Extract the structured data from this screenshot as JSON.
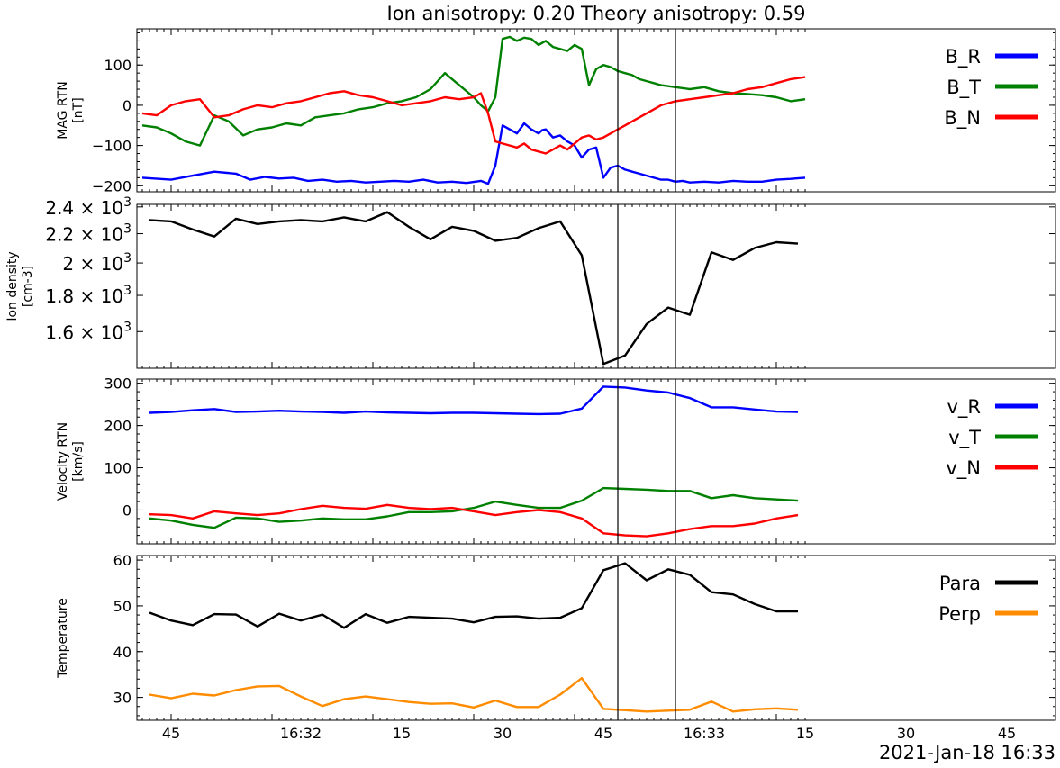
{
  "title": "Ion anisotropy: 0.20 Theory anisotropy: 0.59",
  "date_label": "2021-Jan-18 16:33",
  "chart_data": [
    {
      "type": "line",
      "ylabel": "MAG RTN\n[nT]",
      "ylim": [
        -215,
        190
      ],
      "yticks": [
        {
          "v": 100,
          "l": "100"
        },
        {
          "v": 0,
          "l": "0"
        },
        {
          "v": -100,
          "l": "−100"
        },
        {
          "v": -200,
          "l": "−200"
        }
      ],
      "x_range_s": [
        -50,
        42
      ],
      "legend_position": "top-right",
      "series": [
        {
          "name": "B_R",
          "color": "#0000ff",
          "x": [
            -50,
            -46,
            -43,
            -40,
            -37,
            -35,
            -33,
            -31,
            -29,
            -27,
            -25,
            -23,
            -21,
            -19,
            -17,
            -15,
            -13,
            -11,
            -9,
            -7,
            -5,
            -3,
            -2,
            -1,
            0,
            1,
            2,
            3,
            4,
            5,
            5.5,
            6,
            7,
            8,
            9,
            10,
            11,
            12,
            13,
            14,
            15,
            16,
            17,
            18,
            19,
            20,
            21,
            22,
            23,
            24,
            25,
            26,
            28,
            30,
            32,
            34,
            36,
            38,
            40,
            42
          ],
          "y": [
            -180,
            -185,
            -175,
            -165,
            -170,
            -185,
            -178,
            -182,
            -180,
            -188,
            -185,
            -190,
            -188,
            -192,
            -190,
            -188,
            -190,
            -185,
            -192,
            -190,
            -193,
            -188,
            -195,
            -150,
            -50,
            -60,
            -70,
            -45,
            -60,
            -70,
            -62,
            -60,
            -80,
            -75,
            -90,
            -100,
            -130,
            -110,
            -105,
            -180,
            -155,
            -150,
            -160,
            -165,
            -170,
            -175,
            -180,
            -185,
            -185,
            -190,
            -188,
            -192,
            -190,
            -192,
            -188,
            -190,
            -190,
            -185,
            -183,
            -180
          ]
        },
        {
          "name": "B_T",
          "color": "#008000",
          "x": [
            -50,
            -48,
            -46,
            -44,
            -42,
            -40,
            -38,
            -36,
            -34,
            -32,
            -30,
            -28,
            -26,
            -24,
            -22,
            -20,
            -18,
            -16,
            -14,
            -12,
            -10,
            -8,
            -6,
            -4,
            -3,
            -2,
            -1,
            0,
            1,
            2,
            3,
            4,
            5,
            6,
            7,
            8,
            9,
            10,
            11,
            12,
            13,
            14,
            15,
            16,
            17,
            18,
            19,
            20,
            21,
            22,
            24,
            26,
            28,
            30,
            32,
            34,
            36,
            38,
            40,
            42
          ],
          "y": [
            -50,
            -55,
            -70,
            -90,
            -100,
            -25,
            -40,
            -75,
            -60,
            -55,
            -45,
            -50,
            -30,
            -25,
            -20,
            -10,
            -5,
            5,
            10,
            20,
            40,
            80,
            50,
            20,
            0,
            -15,
            20,
            165,
            170,
            160,
            168,
            165,
            150,
            160,
            145,
            140,
            135,
            150,
            140,
            50,
            90,
            100,
            95,
            85,
            80,
            75,
            65,
            60,
            55,
            50,
            45,
            40,
            45,
            35,
            30,
            28,
            25,
            20,
            10,
            15
          ]
        },
        {
          "name": "B_N",
          "color": "#ff0000",
          "x": [
            -50,
            -48,
            -46,
            -44,
            -42,
            -40,
            -38,
            -36,
            -34,
            -32,
            -30,
            -28,
            -26,
            -24,
            -22,
            -20,
            -18,
            -16,
            -14,
            -12,
            -10,
            -8,
            -6,
            -4,
            -3,
            -2,
            -1,
            0,
            1,
            2,
            3,
            4,
            5,
            6,
            7,
            8,
            9,
            10,
            11,
            12,
            13,
            14,
            15,
            16,
            17,
            18,
            19,
            20,
            21,
            22,
            24,
            26,
            28,
            30,
            32,
            34,
            36,
            38,
            40,
            42
          ],
          "y": [
            -20,
            -25,
            0,
            10,
            15,
            -30,
            -25,
            -10,
            0,
            -5,
            5,
            10,
            20,
            30,
            35,
            25,
            20,
            10,
            0,
            5,
            10,
            20,
            15,
            20,
            30,
            -20,
            -90,
            -95,
            -100,
            -105,
            -95,
            -110,
            -115,
            -120,
            -110,
            -100,
            -110,
            -95,
            -80,
            -75,
            -85,
            -80,
            -70,
            -60,
            -50,
            -40,
            -30,
            -20,
            -10,
            0,
            10,
            15,
            20,
            25,
            30,
            40,
            45,
            55,
            65,
            70
          ]
        }
      ]
    },
    {
      "type": "line",
      "ylabel": "Ion density\n[cm-3]",
      "yscale": "log",
      "ylim": [
        1420,
        2420
      ],
      "yticks": [
        {
          "v": 2400,
          "m": "2.4"
        },
        {
          "v": 2200,
          "m": "2.2"
        },
        {
          "v": 2000,
          "m": "2"
        },
        {
          "v": 1800,
          "m": "1.8"
        },
        {
          "v": 1600,
          "m": "1.6"
        }
      ],
      "x_range_s": [
        -50,
        42
      ],
      "series": [
        {
          "name": "",
          "color": "#000000",
          "x": [
            -49,
            -46,
            -43,
            -40,
            -37,
            -34,
            -31,
            -28,
            -25,
            -22,
            -19,
            -16,
            -13,
            -10,
            -7,
            -4,
            -1,
            2,
            5,
            8,
            11,
            14,
            17,
            20,
            23,
            26,
            29,
            32,
            35,
            38,
            41
          ],
          "y": [
            2300,
            2290,
            2230,
            2180,
            2310,
            2270,
            2290,
            2300,
            2290,
            2320,
            2290,
            2360,
            2250,
            2160,
            2250,
            2220,
            2150,
            2170,
            2240,
            2290,
            2050,
            1440,
            1480,
            1640,
            1730,
            1690,
            2070,
            2020,
            2100,
            2140,
            2130
          ]
        }
      ]
    },
    {
      "type": "line",
      "ylabel": "Velocity RTN\n[km/s]",
      "ylim": [
        -80,
        310
      ],
      "yticks": [
        {
          "v": 300,
          "l": "300"
        },
        {
          "v": 200,
          "l": "200"
        },
        {
          "v": 100,
          "l": "100"
        },
        {
          "v": 0,
          "l": "0"
        }
      ],
      "x_range_s": [
        -50,
        42
      ],
      "legend_position": "top-right",
      "series": [
        {
          "name": "v_R",
          "color": "#0000ff",
          "x": [
            -49,
            -46,
            -43,
            -40,
            -37,
            -34,
            -31,
            -28,
            -25,
            -22,
            -19,
            -16,
            -13,
            -10,
            -7,
            -4,
            -1,
            2,
            5,
            8,
            11,
            14,
            17,
            20,
            23,
            26,
            29,
            32,
            35,
            38,
            41
          ],
          "y": [
            230,
            232,
            236,
            239,
            232,
            233,
            235,
            233,
            232,
            230,
            233,
            231,
            230,
            229,
            230,
            230,
            229,
            228,
            227,
            228,
            240,
            292,
            290,
            283,
            278,
            265,
            243,
            243,
            238,
            233,
            232
          ]
        },
        {
          "name": "v_T",
          "color": "#008000",
          "x": [
            -49,
            -46,
            -43,
            -40,
            -37,
            -34,
            -31,
            -28,
            -25,
            -22,
            -19,
            -16,
            -13,
            -10,
            -7,
            -4,
            -1,
            2,
            5,
            8,
            11,
            14,
            17,
            20,
            23,
            26,
            29,
            32,
            35,
            38,
            41
          ],
          "y": [
            -20,
            -25,
            -35,
            -42,
            -18,
            -20,
            -28,
            -25,
            -20,
            -22,
            -22,
            -15,
            -5,
            -5,
            -3,
            5,
            20,
            12,
            5,
            5,
            22,
            52,
            50,
            48,
            45,
            45,
            28,
            35,
            28,
            25,
            22
          ]
        },
        {
          "name": "v_N",
          "color": "#ff0000",
          "x": [
            -49,
            -46,
            -43,
            -40,
            -37,
            -34,
            -31,
            -28,
            -25,
            -22,
            -19,
            -16,
            -13,
            -10,
            -7,
            -4,
            -1,
            2,
            5,
            8,
            11,
            14,
            17,
            20,
            23,
            26,
            29,
            32,
            35,
            38,
            41
          ],
          "y": [
            -10,
            -12,
            -20,
            -3,
            -8,
            -12,
            -8,
            2,
            10,
            5,
            3,
            12,
            5,
            2,
            5,
            -3,
            -12,
            -5,
            0,
            -5,
            -20,
            -55,
            -60,
            -62,
            -55,
            -45,
            -38,
            -38,
            -32,
            -20,
            -12
          ]
        }
      ]
    },
    {
      "type": "line",
      "ylabel": "Temperature",
      "ylim": [
        25,
        61
      ],
      "yticks": [
        {
          "v": 60,
          "l": "60"
        },
        {
          "v": 50,
          "l": "50"
        },
        {
          "v": 40,
          "l": "40"
        },
        {
          "v": 30,
          "l": "30"
        }
      ],
      "x_range_s": [
        -50,
        42
      ],
      "legend_position": "top-right",
      "series": [
        {
          "name": "Para",
          "color": "#000000",
          "x": [
            -49,
            -46,
            -43,
            -40,
            -37,
            -34,
            -31,
            -28,
            -25,
            -22,
            -19,
            -16,
            -13,
            -10,
            -7,
            -4,
            -1,
            2,
            5,
            8,
            11,
            14,
            17,
            20,
            23,
            26,
            29,
            32,
            35,
            38,
            41
          ],
          "y": [
            48.5,
            46.8,
            45.8,
            48.2,
            48.1,
            45.5,
            48.3,
            46.8,
            48.1,
            45.2,
            48.2,
            46.3,
            47.6,
            47.4,
            47.2,
            46.4,
            47.6,
            47.7,
            47.2,
            47.4,
            49.5,
            57.8,
            59.3,
            55.6,
            58,
            56.8,
            53,
            52.5,
            50.4,
            48.8,
            48.8
          ]
        },
        {
          "name": "Perp",
          "color": "#ff8c00",
          "x": [
            -49,
            -46,
            -43,
            -40,
            -37,
            -34,
            -31,
            -28,
            -25,
            -22,
            -19,
            -16,
            -13,
            -10,
            -7,
            -4,
            -1,
            2,
            5,
            8,
            11,
            14,
            17,
            20,
            23,
            26,
            29,
            32,
            35,
            38,
            41
          ],
          "y": [
            30.6,
            29.8,
            30.8,
            30.4,
            31.6,
            32.4,
            32.5,
            30.2,
            28.1,
            29.6,
            30.2,
            29.6,
            29,
            28.6,
            28.7,
            27.8,
            29.3,
            27.9,
            27.9,
            30.6,
            34.2,
            27.5,
            27.2,
            26.9,
            27.1,
            27.3,
            29.1,
            26.9,
            27.4,
            27.6,
            27.3
          ]
        }
      ]
    }
  ],
  "x_axis": {
    "ticks": [
      {
        "s": -46,
        "l": "45"
      },
      {
        "s": -28,
        "l": "16:32"
      },
      {
        "s": -14,
        "l": "15"
      },
      {
        "s": 0,
        "l": "30"
      },
      {
        "s": 14,
        "l": "45"
      },
      {
        "s": 28,
        "l": "16:33"
      },
      {
        "s": 42,
        "l": "15"
      },
      {
        "s": 56,
        "l": "30"
      },
      {
        "s": 70,
        "l": "45"
      }
    ],
    "vlines_s": [
      16,
      24
    ]
  }
}
